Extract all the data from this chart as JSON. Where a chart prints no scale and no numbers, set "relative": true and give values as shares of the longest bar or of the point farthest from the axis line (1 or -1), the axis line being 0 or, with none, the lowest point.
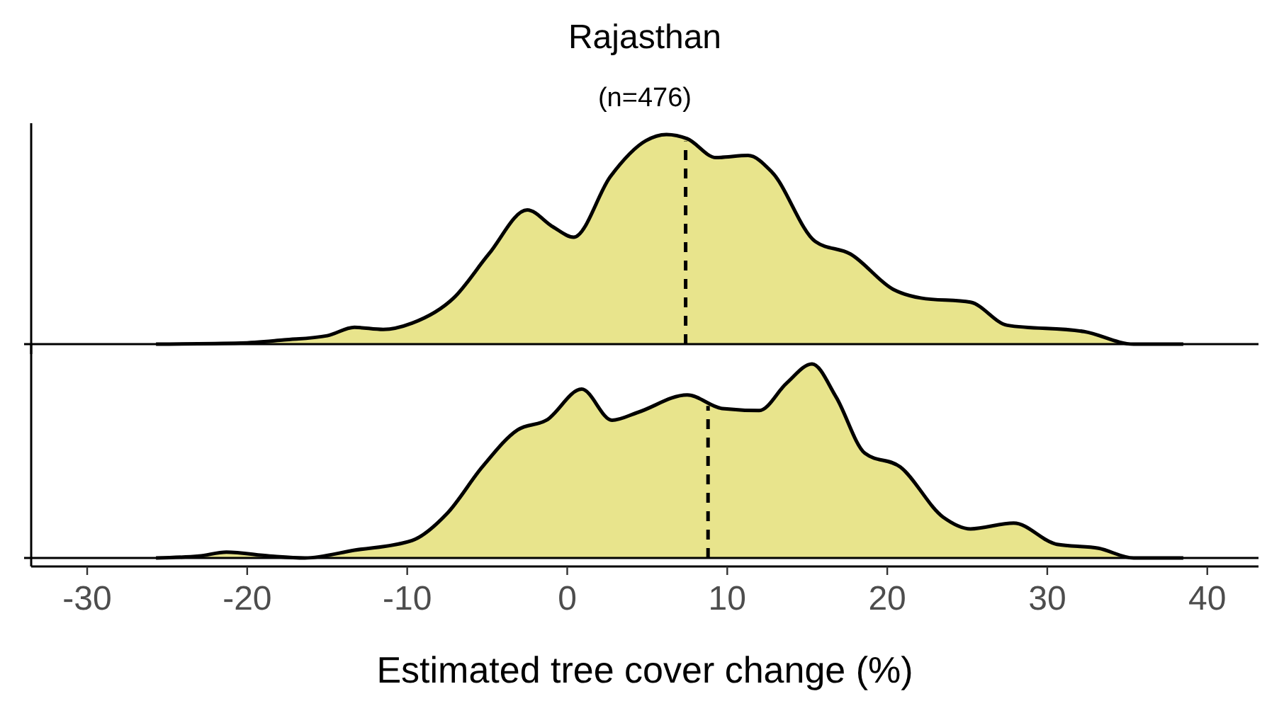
{
  "chart_data": [
    {
      "type": "area",
      "title": "Rajasthan",
      "subtitle": "(n=476)",
      "relative": true,
      "xlim": [
        -33.5,
        43.2
      ],
      "tick_labels": false,
      "x": [
        -25.7,
        -20.4,
        -17.7,
        -15,
        -13.3,
        -11.5,
        -9.7,
        -7.1,
        -4.9,
        -2.5,
        -0.9,
        0.4,
        2.7,
        4.9,
        6.2,
        7.5,
        9.3,
        11.3,
        12.8,
        15.5,
        17.7,
        20.4,
        22.1,
        25.2,
        27.5,
        32.3,
        35.4,
        38.5
      ],
      "series": [
        {
          "color": "#e8e48c",
          "values": [
            0,
            0.005,
            0.02,
            0.04,
            0.08,
            0.07,
            0.1,
            0.22,
            0.43,
            0.64,
            0.56,
            0.51,
            0.8,
            0.97,
            1,
            0.98,
            0.89,
            0.9,
            0.82,
            0.49,
            0.43,
            0.26,
            0.22,
            0.2,
            0.09,
            0.06,
            0,
            0
          ]
        }
      ],
      "ref_lines": [
        {
          "axis": "x",
          "value": 7.4,
          "color": "#000000",
          "line_style": "dashed"
        }
      ]
    },
    {
      "type": "area",
      "relative": true,
      "xlim": [
        -33.5,
        43.2
      ],
      "xticks": [
        -30,
        -20,
        -10,
        0,
        10,
        20,
        30,
        40
      ],
      "xlabel": "Estimated tree cover change (%)",
      "tick_labels": "x",
      "x": [
        -25.7,
        -23,
        -21.3,
        -18.6,
        -16.4,
        -13.3,
        -9.7,
        -7.5,
        -5.3,
        -3.1,
        -1.3,
        0.9,
        2.8,
        4.4,
        7.5,
        9.7,
        12,
        13.7,
        15.3,
        16.8,
        18.6,
        20.8,
        23.5,
        25.2,
        27.9,
        30.6,
        33.2,
        35.4,
        38.5
      ],
      "series": [
        {
          "color": "#e8e48c",
          "values": [
            0,
            0.01,
            0.03,
            0.01,
            0,
            0.04,
            0.09,
            0.23,
            0.47,
            0.66,
            0.71,
            0.87,
            0.71,
            0.75,
            0.84,
            0.77,
            0.76,
            0.9,
            1,
            0.83,
            0.54,
            0.47,
            0.21,
            0.15,
            0.18,
            0.07,
            0.05,
            0,
            0
          ]
        }
      ],
      "ref_lines": [
        {
          "axis": "x",
          "value": 8.8,
          "color": "#000000",
          "line_style": "dashed"
        }
      ]
    }
  ]
}
